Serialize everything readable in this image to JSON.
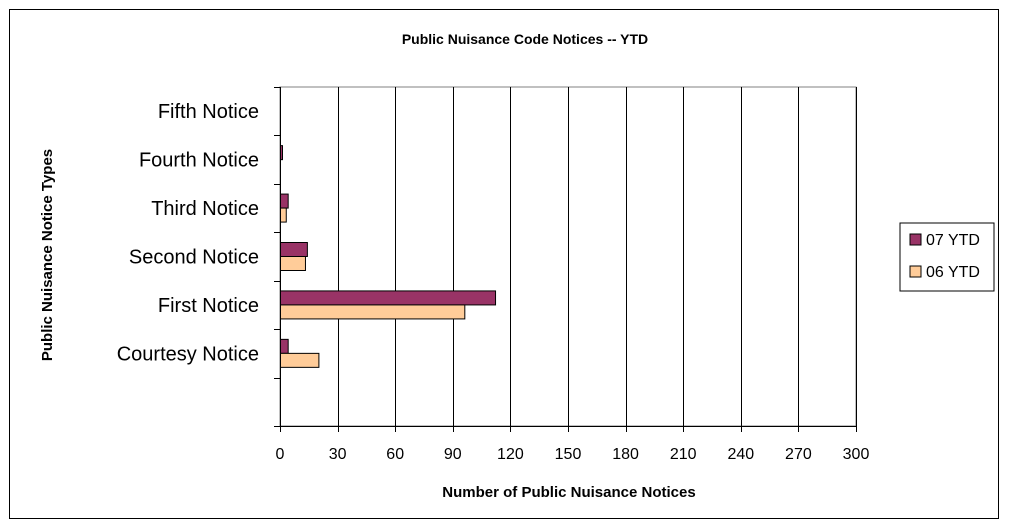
{
  "chart_data": {
    "type": "bar",
    "orientation": "horizontal",
    "title": "Public Nuisance Code Notices -- YTD",
    "xlabel": "Number of Public Nuisance Notices",
    "ylabel": "Public Nuisance Notice Types",
    "categories": [
      "Fifth Notice",
      "Fourth Notice",
      "Third Notice",
      "Second Notice",
      "First Notice",
      "Courtesy Notice"
    ],
    "series": [
      {
        "name": "07 YTD",
        "color": "#993366",
        "values": [
          0,
          1,
          4,
          14,
          112,
          4
        ]
      },
      {
        "name": "06 YTD",
        "color": "#FFCC99",
        "values": [
          0,
          0,
          3,
          13,
          96,
          20
        ]
      }
    ],
    "xlim": [
      0,
      300
    ],
    "xticks": [
      0,
      30,
      60,
      90,
      120,
      150,
      180,
      210,
      240,
      270,
      300
    ],
    "grid": "vertical",
    "legend": "right"
  }
}
